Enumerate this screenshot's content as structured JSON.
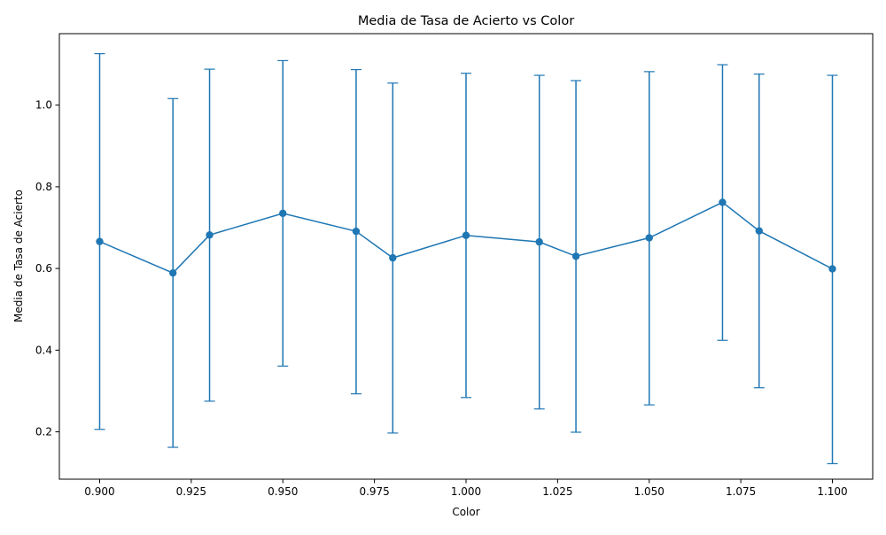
{
  "chart_data": {
    "type": "line",
    "title": "Media de Tasa de Acierto vs Color",
    "xlabel": "Color",
    "ylabel": "Media de Tasa de Acierto",
    "xlim": [
      0.889,
      1.111
    ],
    "ylim": [
      0.084,
      1.175
    ],
    "x_ticks": [
      0.9,
      0.925,
      0.95,
      0.975,
      1.0,
      1.025,
      1.05,
      1.075,
      1.1
    ],
    "x_tick_labels": [
      "0.900",
      "0.925",
      "0.950",
      "0.975",
      "1.000",
      "1.025",
      "1.050",
      "1.075",
      "1.100"
    ],
    "y_ticks": [
      0.2,
      0.4,
      0.6,
      0.8,
      1.0
    ],
    "y_tick_labels": [
      "0.2",
      "0.4",
      "0.6",
      "0.8",
      "1.0"
    ],
    "grid": false,
    "line_color": "#1f77b4",
    "series": [
      {
        "x": [
          0.9,
          0.92,
          0.93,
          0.95,
          0.97,
          0.98,
          1.0,
          1.02,
          1.03,
          1.05,
          1.07,
          1.08,
          1.1
        ],
        "y": [
          0.666,
          0.589,
          0.682,
          0.735,
          0.691,
          0.626,
          0.681,
          0.665,
          0.63,
          0.675,
          0.762,
          0.692,
          0.599
        ],
        "y_low": [
          0.206,
          0.162,
          0.275,
          0.361,
          0.293,
          0.197,
          0.284,
          0.256,
          0.199,
          0.266,
          0.424,
          0.308,
          0.122
        ],
        "y_high": [
          1.126,
          1.016,
          1.088,
          1.109,
          1.087,
          1.054,
          1.078,
          1.073,
          1.06,
          1.082,
          1.099,
          1.076,
          1.073
        ]
      }
    ]
  }
}
